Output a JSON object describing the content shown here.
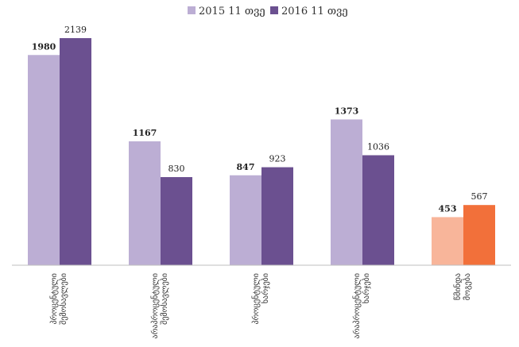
{
  "chart_data": {
    "type": "bar",
    "categories": [
      [
        "პროცენტული",
        "შემოსავლები"
      ],
      [
        "არაპროცენტული",
        "შემოსავლები"
      ],
      [
        "პროცენტული",
        "ხარჯები"
      ],
      [
        "არაპროცენტული",
        "ხარჯები"
      ],
      [
        "წმინდა",
        "მოგება"
      ]
    ],
    "series": [
      {
        "name": "2015 11 თვე",
        "values": [
          1980,
          1167,
          847,
          1373,
          453
        ]
      },
      {
        "name": "2016 11 თვე",
        "values": [
          2139,
          830,
          923,
          1036,
          567
        ]
      }
    ],
    "value_labels": [
      [
        "1980",
        "1167",
        "847",
        "1373",
        "453"
      ],
      [
        "2139",
        "830",
        "923",
        "1036",
        "567"
      ]
    ],
    "ylim": [
      0,
      2200
    ],
    "grid": false,
    "legend_position": "top-center",
    "colors": {
      "series_2015": "#bcaed4",
      "series_2016": "#6b5090",
      "highlight_2015": "#f8b59a",
      "highlight_2016": "#f2703a",
      "axis": "#bfbfbf"
    },
    "highlight_category_index": 4
  }
}
